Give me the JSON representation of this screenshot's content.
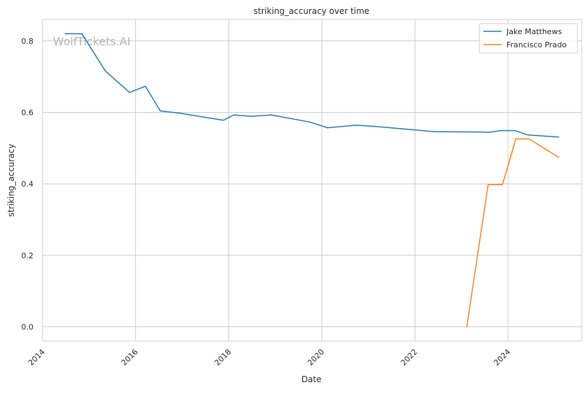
{
  "chart_data": {
    "type": "line",
    "title": "striking_accuracy over time",
    "xlabel": "Date",
    "ylabel": "striking_accuracy",
    "watermark": "WolfTickets.AI",
    "x_ticks": [
      "2014",
      "2016",
      "2018",
      "2020",
      "2022",
      "2024"
    ],
    "y_ticks": [
      "0.0",
      "0.2",
      "0.4",
      "0.6",
      "0.8"
    ],
    "xlim": [
      "2014-01-01",
      "2025-08-01"
    ],
    "ylim": [
      -0.04,
      0.86
    ],
    "grid": true,
    "legend_position": "top-right",
    "series": [
      {
        "name": "Jake Matthews",
        "color": "#1f77b4",
        "points": [
          [
            "2014-06-28",
            0.82
          ],
          [
            "2014-11-06",
            0.82
          ],
          [
            "2015-05-09",
            0.716
          ],
          [
            "2015-11-14",
            0.656
          ],
          [
            "2016-03-19",
            0.673
          ],
          [
            "2016-07-13",
            0.604
          ],
          [
            "2016-12-10",
            0.598
          ],
          [
            "2017-11-19",
            0.578
          ],
          [
            "2018-02-11",
            0.593
          ],
          [
            "2018-06-27",
            0.589
          ],
          [
            "2018-12-02",
            0.593
          ],
          [
            "2019-09-28",
            0.573
          ],
          [
            "2020-02-15",
            0.557
          ],
          [
            "2020-09-27",
            0.564
          ],
          [
            "2021-02-13",
            0.561
          ],
          [
            "2022-06-11",
            0.546
          ],
          [
            "2023-07-08",
            0.545
          ],
          [
            "2023-07-29",
            0.544
          ],
          [
            "2023-11-04",
            0.549
          ],
          [
            "2024-02-24",
            0.549
          ],
          [
            "2024-06-01",
            0.537
          ],
          [
            "2025-02-01",
            0.531
          ]
        ]
      },
      {
        "name": "Francisco Prado",
        "color": "#ff7f0e",
        "points": [
          [
            "2023-02-11",
            0.0
          ],
          [
            "2023-07-29",
            0.398
          ],
          [
            "2023-11-18",
            0.398
          ],
          [
            "2024-03-02",
            0.526
          ],
          [
            "2024-06-15",
            0.526
          ],
          [
            "2025-02-01",
            0.474
          ]
        ]
      }
    ]
  }
}
